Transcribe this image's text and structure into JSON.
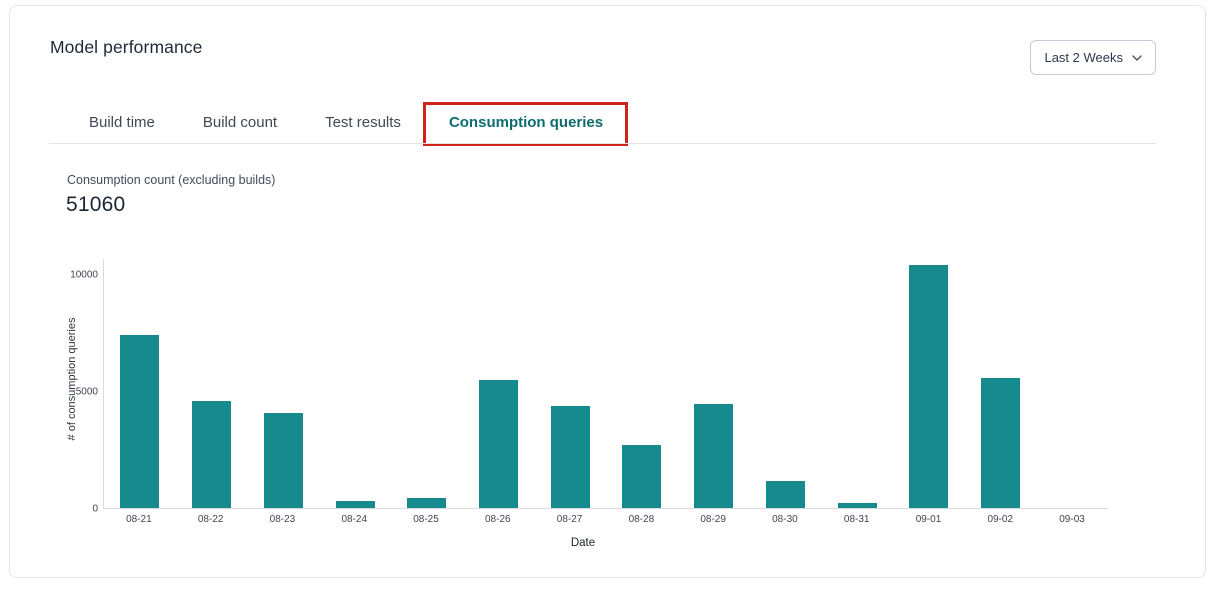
{
  "header": {
    "title": "Model performance",
    "range_selector": "Last 2 Weeks"
  },
  "tabs": [
    {
      "label": "Build time",
      "active": false,
      "highlighted": false
    },
    {
      "label": "Build count",
      "active": false,
      "highlighted": false
    },
    {
      "label": "Test results",
      "active": false,
      "highlighted": false
    },
    {
      "label": "Consumption queries",
      "active": true,
      "highlighted": true
    }
  ],
  "metric": {
    "label": "Consumption count (excluding builds)",
    "value": "51060"
  },
  "chart_data": {
    "type": "bar",
    "title": "",
    "xlabel": "Date",
    "ylabel": "# of consumption queries",
    "categories": [
      "08-21",
      "08-22",
      "08-23",
      "08-24",
      "08-25",
      "08-26",
      "08-27",
      "08-28",
      "08-29",
      "08-30",
      "08-31",
      "09-01",
      "09-02",
      "09-03"
    ],
    "values": [
      7400,
      4600,
      4050,
      300,
      430,
      5500,
      4350,
      2700,
      4450,
      1150,
      200,
      10380,
      5550,
      0
    ],
    "yticks": [
      0,
      5000,
      10000
    ],
    "ylim": [
      0,
      10700
    ],
    "grid": false,
    "legend": false
  },
  "colors": {
    "bar": "#178a8d",
    "active_tab": "#0e6c71",
    "annotation": "#d0231b"
  }
}
